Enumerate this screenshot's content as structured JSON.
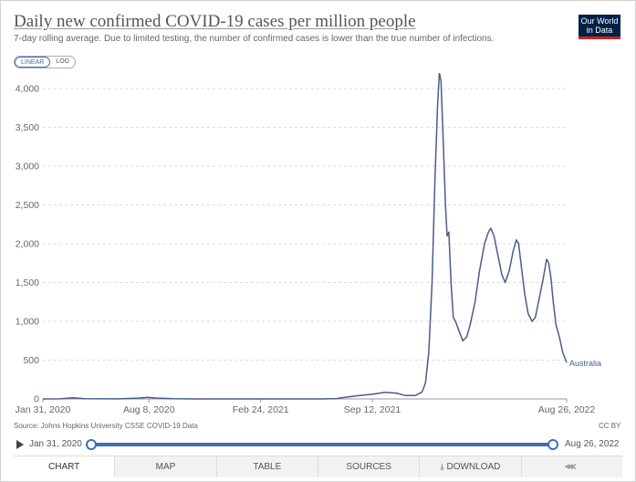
{
  "header": {
    "title": "Daily new confirmed COVID-19 cases per million people",
    "subtitle": "7-day rolling average. Due to limited testing, the number of confirmed cases is lower than the true number of infections.",
    "logo_line1": "Our World",
    "logo_line2": "in Data"
  },
  "scale_toggle": {
    "linear": "LINEAR",
    "log": "LOG",
    "selected": "LINEAR"
  },
  "chart_data": {
    "type": "line",
    "title": "Daily new confirmed COVID-19 cases per million people",
    "xlabel": "",
    "ylabel": "",
    "ylim": [
      0,
      4200
    ],
    "yticks": [
      0,
      500,
      1000,
      1500,
      2000,
      2500,
      3000,
      3500,
      4000
    ],
    "ytick_labels": [
      "0",
      "500",
      "1,000",
      "1,500",
      "2,000",
      "2,500",
      "3,000",
      "3,500",
      "4,000"
    ],
    "xlim": [
      "2020-01-31",
      "2022-08-26"
    ],
    "xticks": [
      "2020-01-31",
      "2020-08-08",
      "2021-02-24",
      "2021-09-12",
      "2022-08-26"
    ],
    "xtick_labels": [
      "Jan 31, 2020",
      "Aug 8, 2020",
      "Feb 24, 2021",
      "Sep 12, 2021",
      "Aug 26, 2022"
    ],
    "grid": "horizontal dashed",
    "series": [
      {
        "name": "Australia",
        "color": "#4c5b8a",
        "points": [
          [
            "2020-01-31",
            0
          ],
          [
            "2020-03-01",
            1
          ],
          [
            "2020-03-25",
            15
          ],
          [
            "2020-04-15",
            3
          ],
          [
            "2020-06-15",
            1
          ],
          [
            "2020-07-20",
            10
          ],
          [
            "2020-08-05",
            20
          ],
          [
            "2020-08-20",
            12
          ],
          [
            "2020-09-20",
            2
          ],
          [
            "2020-11-01",
            0
          ],
          [
            "2021-02-24",
            0
          ],
          [
            "2021-06-15",
            0
          ],
          [
            "2021-07-10",
            5
          ],
          [
            "2021-07-25",
            20
          ],
          [
            "2021-08-20",
            45
          ],
          [
            "2021-09-12",
            60
          ],
          [
            "2021-10-05",
            85
          ],
          [
            "2021-10-25",
            75
          ],
          [
            "2021-11-10",
            45
          ],
          [
            "2021-11-28",
            45
          ],
          [
            "2021-12-10",
            90
          ],
          [
            "2021-12-16",
            200
          ],
          [
            "2021-12-22",
            600
          ],
          [
            "2021-12-28",
            1500
          ],
          [
            "2022-01-02",
            2800
          ],
          [
            "2022-01-07",
            3800
          ],
          [
            "2022-01-10",
            4200
          ],
          [
            "2022-01-13",
            4100
          ],
          [
            "2022-01-17",
            3300
          ],
          [
            "2022-01-21",
            2500
          ],
          [
            "2022-01-24",
            2100
          ],
          [
            "2022-01-27",
            2150
          ],
          [
            "2022-01-31",
            1500
          ],
          [
            "2022-02-04",
            1050
          ],
          [
            "2022-02-08",
            1000
          ],
          [
            "2022-02-13",
            900
          ],
          [
            "2022-02-21",
            750
          ],
          [
            "2022-02-28",
            800
          ],
          [
            "2022-03-06",
            950
          ],
          [
            "2022-03-15",
            1250
          ],
          [
            "2022-03-23",
            1650
          ],
          [
            "2022-04-01",
            2000
          ],
          [
            "2022-04-08",
            2150
          ],
          [
            "2022-04-12",
            2200
          ],
          [
            "2022-04-18",
            2100
          ],
          [
            "2022-04-25",
            1850
          ],
          [
            "2022-05-02",
            1600
          ],
          [
            "2022-05-08",
            1500
          ],
          [
            "2022-05-15",
            1650
          ],
          [
            "2022-05-22",
            1900
          ],
          [
            "2022-05-28",
            2050
          ],
          [
            "2022-06-01",
            2000
          ],
          [
            "2022-06-06",
            1700
          ],
          [
            "2022-06-12",
            1350
          ],
          [
            "2022-06-18",
            1100
          ],
          [
            "2022-06-25",
            1000
          ],
          [
            "2022-07-01",
            1050
          ],
          [
            "2022-07-08",
            1300
          ],
          [
            "2022-07-15",
            1550
          ],
          [
            "2022-07-21",
            1800
          ],
          [
            "2022-07-25",
            1750
          ],
          [
            "2022-07-29",
            1550
          ],
          [
            "2022-08-02",
            1250
          ],
          [
            "2022-08-07",
            950
          ],
          [
            "2022-08-13",
            800
          ],
          [
            "2022-08-19",
            600
          ],
          [
            "2022-08-26",
            470
          ]
        ]
      }
    ]
  },
  "footer": {
    "source": "Source: Johns Hopkins University CSSE COVID-19 Data",
    "license": "CC BY"
  },
  "timeline": {
    "start_label": "Jan 31, 2020",
    "end_label": "Aug 26, 2022"
  },
  "tabs": [
    {
      "label": "CHART",
      "icon": ""
    },
    {
      "label": "MAP",
      "icon": ""
    },
    {
      "label": "TABLE",
      "icon": ""
    },
    {
      "label": "SOURCES",
      "icon": ""
    },
    {
      "label": "DOWNLOAD",
      "icon": "download-icon"
    },
    {
      "label": "",
      "icon": "share-icon"
    }
  ]
}
